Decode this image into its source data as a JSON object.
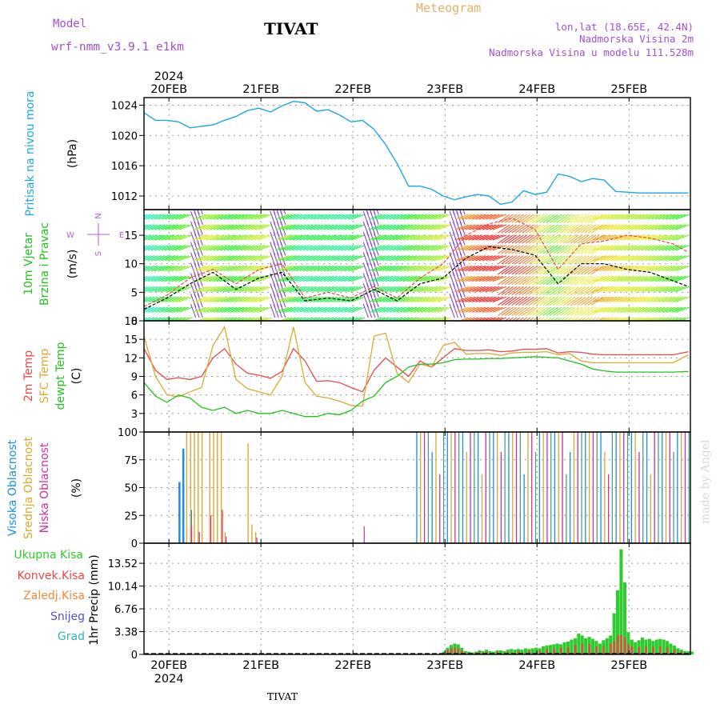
{
  "header": {
    "model_label": "Model",
    "model_name": "wrf-nmm_v3.9.1  e1km",
    "station": "TIVAT",
    "product": "Meteogram",
    "lonlat": "lon,lat (18.65E, 42.4N)",
    "elevation": "Nadmorska Visina 2m",
    "model_elevation": "Nadmorska Visina u modelu 111.528m"
  },
  "footer": {
    "station": "TIVAT",
    "credit": "made by Angel"
  },
  "time_axis": {
    "year": "2024",
    "days": [
      "20FEB",
      "21FEB",
      "22FEB",
      "23FEB",
      "24FEB",
      "25FEB"
    ],
    "start_hours_before_first_day": 6.5,
    "total_hours": 142.5
  },
  "colors": {
    "pressure": "#1ba6e6",
    "temp": "#e84848",
    "sfc": "#dca832",
    "dewpt": "#22c21f",
    "high_cloud": "#1a8fe0",
    "mid_cloud": "#dca832",
    "low_cloud": "#c832a0",
    "total_precip": "#2ecc2e",
    "conv_precip": "#e84848",
    "frz_precip": "#ee8a3a",
    "snow": "#5050dd",
    "hail": "#2ab7b7",
    "wind_label": "#22c21f",
    "wind_arrow_legend": "#b060d0",
    "title_purple": "#a050d0",
    "title_orange": "#e8b060"
  },
  "chart_data": [
    {
      "type": "line",
      "ylabel_main": "Pritisak na nivou mora",
      "ylabel_unit": "(hPa)",
      "yticks": [
        1012,
        1016,
        1020,
        1024
      ],
      "ylim": [
        1010.2,
        1025.0
      ],
      "grid": true,
      "series": [
        {
          "color": "pressure",
          "x_hours": [
            0,
            3,
            6,
            9,
            12,
            15,
            18,
            21,
            24,
            27,
            30,
            33,
            36,
            39,
            42,
            45,
            48,
            51,
            54,
            57,
            60,
            63,
            66,
            69,
            72,
            75,
            78,
            81,
            84,
            87,
            90,
            93,
            96,
            99,
            102,
            105,
            108,
            111,
            114,
            117,
            120,
            123,
            126,
            129,
            132,
            135,
            138,
            142
          ],
          "values": [
            1023.0,
            1022.0,
            1022.0,
            1021.8,
            1021.0,
            1021.2,
            1021.4,
            1022.0,
            1022.5,
            1023.3,
            1023.6,
            1023.1,
            1023.9,
            1024.5,
            1024.3,
            1023.2,
            1023.4,
            1022.7,
            1021.8,
            1022.0,
            1020.8,
            1018.8,
            1016.3,
            1013.3,
            1013.3,
            1012.9,
            1012.0,
            1011.5,
            1011.9,
            1012.2,
            1012.0,
            1010.9,
            1011.2,
            1012.7,
            1012.2,
            1012.5,
            1014.9,
            1014.6,
            1013.9,
            1014.3,
            1014.1,
            1012.6,
            1012.5,
            1012.4,
            1012.4,
            1012.4,
            1012.4,
            1012.4
          ]
        }
      ]
    },
    {
      "type": "line",
      "ylabel_main": "10m Vjetar",
      "ylabel_sub": "Brzina i Pravac",
      "ylabel_unit": "(m/s)",
      "compass": {
        "north": "N",
        "south": "S",
        "west": "W",
        "east": "E"
      },
      "yticks": [
        0,
        5,
        10,
        15
      ],
      "ylim": [
        0,
        19.5
      ],
      "grid": true,
      "series": [
        {
          "name_key": "wind_speed",
          "color": "#000000",
          "x_hours": [
            0,
            6,
            12,
            18,
            24,
            30,
            36,
            42,
            48,
            54,
            60,
            66,
            72,
            78,
            84,
            90,
            96,
            102,
            108,
            114,
            120,
            126,
            132,
            138,
            142
          ],
          "values": [
            2.0,
            4.0,
            6.5,
            8.5,
            5.5,
            7.5,
            8.5,
            3.5,
            4.0,
            3.5,
            5.5,
            3.5,
            6.5,
            7.5,
            11.0,
            13.0,
            12.5,
            11.5,
            6.5,
            10.0,
            10.0,
            9.0,
            8.5,
            7.0,
            6.0
          ]
        },
        {
          "name_key": "wind_gust",
          "color": "#e84848",
          "x_hours": [
            0,
            6,
            12,
            18,
            24,
            30,
            36,
            42,
            48,
            54,
            60,
            66,
            72,
            78,
            84,
            90,
            96,
            102,
            108,
            114,
            120,
            126,
            132,
            138,
            142
          ],
          "values": [
            2.5,
            4.5,
            7.5,
            9.0,
            6.5,
            9.0,
            10.0,
            4.0,
            5.0,
            4.0,
            6.0,
            4.0,
            7.5,
            10.0,
            15.0,
            17.0,
            18.0,
            16.0,
            9.0,
            13.5,
            14.0,
            15.0,
            14.5,
            13.5,
            12.0
          ]
        }
      ]
    },
    {
      "type": "line",
      "ylabel_main": "2m Temp",
      "ylabel_sub": "SFC Temp",
      "ylabel_sub2": "dewpt Temp",
      "ylabel_unit": "(C)",
      "yticks": [
        3,
        6,
        9,
        12,
        15,
        18
      ],
      "ylim": [
        0,
        18
      ],
      "grid": true,
      "series": [
        {
          "name_key": "temp2m",
          "color": "temp",
          "x_hours": [
            0,
            3,
            6,
            9,
            12,
            15,
            18,
            21,
            24,
            27,
            30,
            33,
            36,
            39,
            42,
            45,
            48,
            51,
            54,
            57,
            60,
            63,
            66,
            69,
            72,
            75,
            78,
            81,
            84,
            87,
            90,
            93,
            96,
            99,
            102,
            105,
            108,
            111,
            114,
            117,
            120,
            123,
            126,
            129,
            132,
            135,
            138,
            142
          ],
          "values": [
            13.5,
            10.0,
            8.5,
            8.8,
            8.5,
            9.0,
            12.0,
            13.5,
            11.0,
            9.5,
            9.2,
            8.7,
            9.8,
            13.5,
            11.5,
            8.2,
            8.3,
            8.0,
            7.2,
            6.5,
            10.0,
            12.0,
            10.5,
            9.0,
            11.5,
            10.5,
            12.0,
            13.5,
            13.2,
            13.2,
            13.3,
            13.0,
            13.1,
            13.4,
            13.4,
            13.5,
            12.8,
            13.0,
            12.9,
            12.6,
            12.5,
            12.5,
            12.5,
            12.5,
            12.5,
            12.5,
            12.5,
            13.0
          ]
        },
        {
          "name_key": "sfc",
          "color": "sfc",
          "x_hours": [
            0,
            3,
            6,
            9,
            12,
            15,
            18,
            21,
            24,
            27,
            30,
            33,
            36,
            39,
            42,
            45,
            48,
            51,
            54,
            57,
            60,
            63,
            66,
            69,
            72,
            75,
            78,
            81,
            84,
            87,
            90,
            93,
            96,
            99,
            102,
            105,
            108,
            111,
            114,
            117,
            120,
            123,
            126,
            129,
            132,
            135,
            138,
            142
          ],
          "values": [
            15.5,
            9.0,
            6.0,
            5.7,
            6.5,
            7.2,
            14.0,
            17.0,
            8.5,
            7.0,
            6.5,
            6.0,
            9.0,
            17.0,
            8.0,
            5.8,
            5.5,
            5.0,
            4.3,
            4.2,
            15.5,
            16.0,
            9.5,
            8.0,
            11.0,
            10.5,
            14.0,
            14.5,
            12.6,
            12.7,
            12.7,
            12.4,
            12.8,
            12.9,
            12.9,
            13.0,
            12.5,
            12.7,
            11.5,
            11.2,
            11.2,
            11.2,
            11.2,
            11.2,
            11.2,
            11.2,
            11.2,
            12.5
          ]
        },
        {
          "name_key": "dewpt",
          "color": "dewpt",
          "x_hours": [
            0,
            3,
            6,
            9,
            12,
            15,
            18,
            21,
            24,
            27,
            30,
            33,
            36,
            39,
            42,
            45,
            48,
            51,
            54,
            57,
            60,
            63,
            66,
            69,
            72,
            75,
            78,
            81,
            84,
            87,
            90,
            93,
            96,
            99,
            102,
            105,
            108,
            111,
            114,
            117,
            120,
            123,
            126,
            129,
            132,
            135,
            138,
            142
          ],
          "values": [
            8.0,
            5.8,
            4.8,
            6.0,
            5.5,
            4.0,
            3.5,
            4.0,
            3.0,
            3.5,
            3.0,
            3.0,
            3.5,
            3.0,
            2.5,
            2.5,
            3.0,
            2.8,
            3.5,
            5.0,
            5.8,
            8.0,
            9.0,
            10.5,
            11.0,
            11.0,
            11.2,
            11.7,
            11.8,
            11.8,
            11.9,
            11.9,
            12.0,
            12.1,
            12.2,
            12.1,
            12.0,
            11.5,
            11.0,
            10.2,
            9.9,
            9.7,
            9.7,
            9.7,
            9.7,
            9.7,
            9.7,
            9.8
          ]
        }
      ]
    },
    {
      "type": "bar",
      "ylabel_main": "Visoka Oblacnost",
      "ylabel_sub": "Srednja Oblacnost",
      "ylabel_sub2": "Niska Oblacnost",
      "ylabel_unit": "(%)",
      "yticks": [
        0,
        25,
        50,
        75,
        100
      ],
      "ylim": [
        0,
        100
      ],
      "grid": true,
      "bars": {
        "high": [
          [
            9,
            55
          ],
          [
            10,
            85
          ],
          [
            12,
            30
          ]
        ],
        "mid": [
          [
            11,
            100
          ],
          [
            12,
            100
          ],
          [
            13,
            100
          ],
          [
            14,
            100
          ],
          [
            15,
            100
          ],
          [
            17,
            100
          ],
          [
            18,
            100
          ],
          [
            19,
            100
          ],
          [
            20,
            100
          ],
          [
            21,
            10
          ],
          [
            27,
            90
          ],
          [
            28,
            17
          ],
          [
            29,
            10
          ]
        ],
        "low": [
          [
            12,
            15
          ],
          [
            14,
            10
          ],
          [
            17,
            25
          ],
          [
            20,
            30
          ],
          [
            21,
            6
          ],
          [
            29,
            5
          ],
          [
            57,
            15
          ]
        ],
        "clouds_after_hour": 71
      }
    },
    {
      "type": "bar",
      "ylabel_main": "Ukupna  Kisa",
      "ylabel_sub": "Konvek.Kisa",
      "ylabel_sub2": "Zaledj.Kisa",
      "ylabel_sub3": "Snijeg",
      "ylabel_sub4": "Grad",
      "ylabel_unit": "1hr Precip (mm)",
      "yticks": [
        0,
        3.38,
        6.76,
        10.14,
        13.52
      ],
      "ylim": [
        0,
        16.5
      ],
      "grid": true,
      "bars_total": [
        [
          79,
          0.4
        ],
        [
          80,
          1.0
        ],
        [
          81,
          1.4
        ],
        [
          82,
          1.6
        ],
        [
          83,
          1.5
        ],
        [
          84,
          1.0
        ],
        [
          85,
          0.5
        ],
        [
          86,
          0.4
        ],
        [
          87,
          0.3
        ],
        [
          88,
          0.4
        ],
        [
          89,
          0.6
        ],
        [
          90,
          0.5
        ],
        [
          91,
          0.7
        ],
        [
          92,
          0.5
        ],
        [
          93,
          0.4
        ],
        [
          94,
          0.6
        ],
        [
          95,
          0.6
        ],
        [
          96,
          0.5
        ],
        [
          97,
          0.7
        ],
        [
          98,
          0.8
        ],
        [
          99,
          0.7
        ],
        [
          100,
          0.8
        ],
        [
          101,
          0.7
        ],
        [
          102,
          0.9
        ],
        [
          103,
          0.8
        ],
        [
          104,
          0.9
        ],
        [
          105,
          1.0
        ],
        [
          106,
          0.9
        ],
        [
          107,
          1.2
        ],
        [
          108,
          1.3
        ],
        [
          109,
          1.4
        ],
        [
          110,
          1.5
        ],
        [
          111,
          1.6
        ],
        [
          112,
          1.5
        ],
        [
          113,
          1.8
        ],
        [
          114,
          1.9
        ],
        [
          115,
          2.2
        ],
        [
          116,
          2.4
        ],
        [
          117,
          3.1
        ],
        [
          118,
          2.8
        ],
        [
          119,
          2.4
        ],
        [
          120,
          2.6
        ],
        [
          121,
          2.3
        ],
        [
          122,
          2.0
        ],
        [
          123,
          1.6
        ],
        [
          124,
          2.1
        ],
        [
          125,
          2.4
        ],
        [
          126,
          2.8
        ],
        [
          127,
          6.1
        ],
        [
          128,
          9.5
        ],
        [
          129,
          15.6
        ],
        [
          130,
          10.7
        ],
        [
          131,
          3.3
        ],
        [
          132,
          2.2
        ],
        [
          133,
          1.8
        ],
        [
          134,
          2.1
        ],
        [
          135,
          2.5
        ],
        [
          136,
          2.2
        ],
        [
          137,
          2.3
        ],
        [
          138,
          2.0
        ],
        [
          139,
          2.2
        ],
        [
          140,
          2.3
        ],
        [
          141,
          2.2
        ],
        [
          142,
          2.0
        ],
        [
          143,
          1.6
        ],
        [
          144,
          1.3
        ],
        [
          145,
          0.9
        ],
        [
          146,
          0.7
        ],
        [
          147,
          0.5
        ],
        [
          148,
          0.5
        ],
        [
          149,
          0.4
        ]
      ],
      "bars_conv": [
        [
          80,
          0.7
        ],
        [
          81,
          0.9
        ],
        [
          82,
          1.0
        ],
        [
          83,
          0.9
        ],
        [
          84,
          0.6
        ],
        [
          85,
          0.3
        ],
        [
          89,
          0.4
        ],
        [
          91,
          0.4
        ],
        [
          94,
          0.4
        ],
        [
          97,
          0.4
        ],
        [
          100,
          0.5
        ],
        [
          103,
          0.5
        ],
        [
          106,
          0.6
        ],
        [
          108,
          0.8
        ],
        [
          110,
          0.9
        ],
        [
          112,
          1.0
        ],
        [
          114,
          1.1
        ],
        [
          116,
          1.4
        ],
        [
          118,
          1.6
        ],
        [
          120,
          1.5
        ],
        [
          122,
          1.2
        ],
        [
          124,
          1.2
        ],
        [
          126,
          1.6
        ],
        [
          127,
          2.0
        ],
        [
          128,
          2.8
        ],
        [
          129,
          2.9
        ],
        [
          130,
          2.5
        ],
        [
          131,
          1.5
        ],
        [
          132,
          1.2
        ],
        [
          134,
          1.1
        ],
        [
          136,
          1.2
        ],
        [
          138,
          1.1
        ],
        [
          140,
          1.2
        ],
        [
          142,
          1.0
        ],
        [
          144,
          0.7
        ],
        [
          146,
          0.4
        ]
      ]
    }
  ]
}
